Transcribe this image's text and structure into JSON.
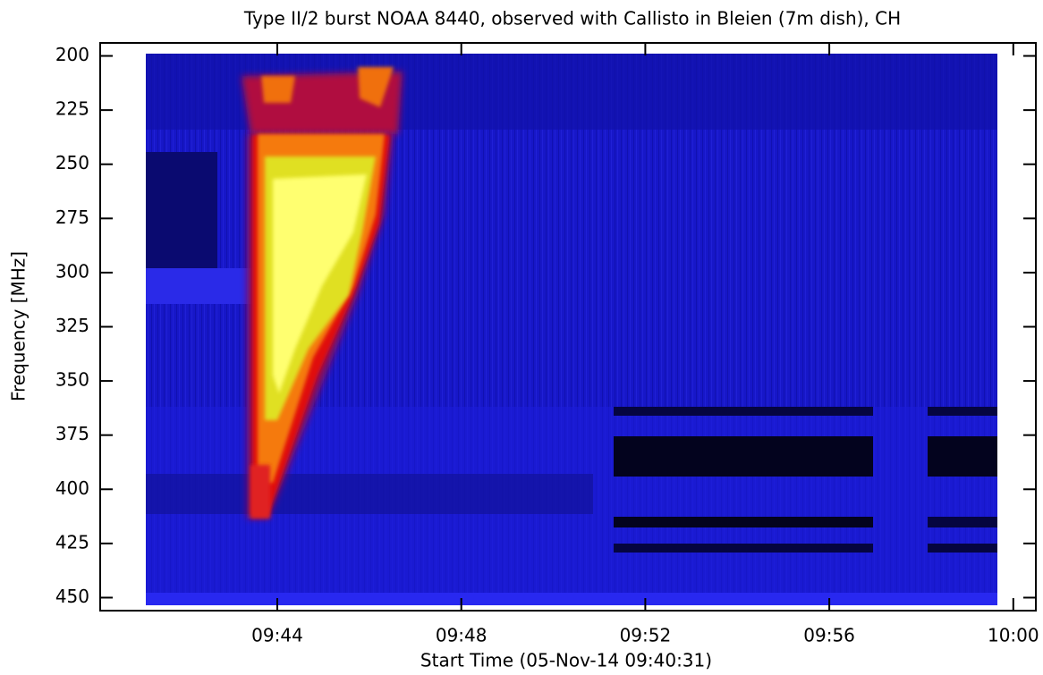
{
  "chart_data": {
    "type": "spectrogram",
    "title": "Type II/2 burst NOAA 8440, observed with Callisto in Bleien (7m dish), CH",
    "x_label": "Start Time (05-Nov-14 09:40:31)",
    "y_label": "Frequency [MHz]",
    "xlim": [
      40.15,
      60.49
    ],
    "xticks": [
      {
        "value": 44,
        "label": "09:44"
      },
      {
        "value": 48,
        "label": "09:48"
      },
      {
        "value": 52,
        "label": "09:52"
      },
      {
        "value": 56,
        "label": "09:56"
      },
      {
        "value": 60,
        "label": "10:00"
      }
    ],
    "ylim": [
      456,
      194
    ],
    "yticks": [
      200,
      225,
      250,
      275,
      300,
      325,
      350,
      375,
      400,
      425,
      450
    ]
  }
}
